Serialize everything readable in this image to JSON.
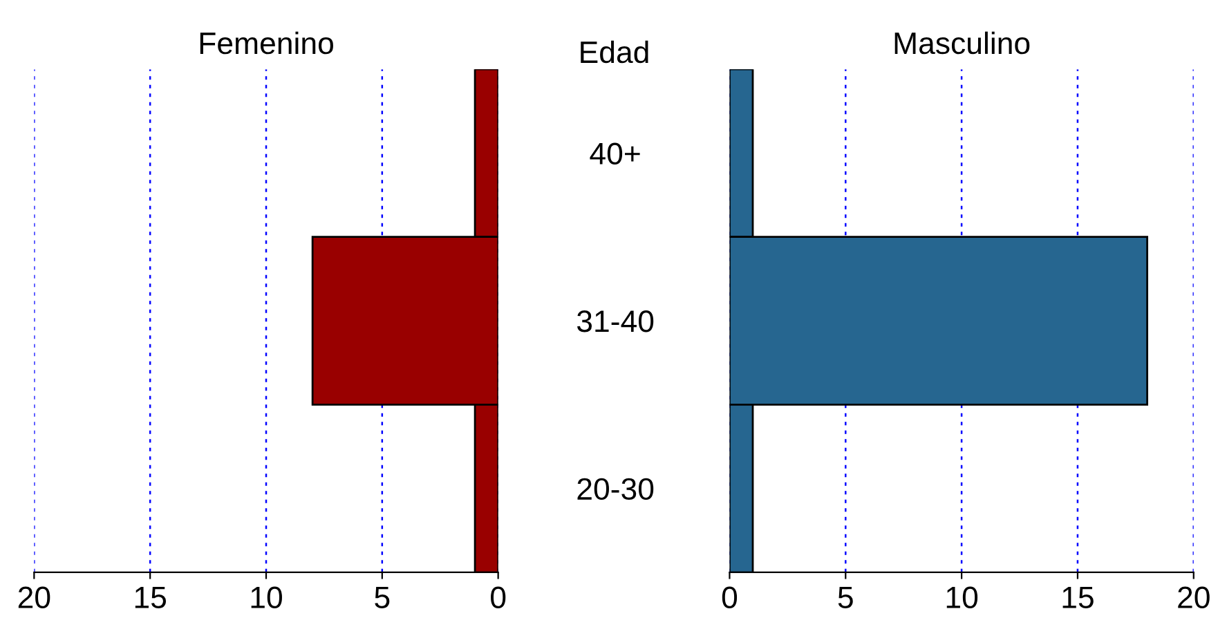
{
  "chart_data": [
    {
      "type": "bar",
      "orientation": "horizontal",
      "title": "Femenino",
      "annotations": [
        "Edad"
      ],
      "categories": [
        "40+",
        "31-40",
        "20-30"
      ],
      "series": [
        {
          "color": "#990000",
          "values": [
            1,
            8,
            1
          ]
        }
      ],
      "xlim": [
        20,
        0
      ],
      "xticks": [
        20,
        15,
        10,
        5,
        0
      ],
      "grid": "x"
    },
    {
      "type": "bar",
      "orientation": "horizontal",
      "title": "Masculino",
      "categories": [
        null,
        null,
        null
      ],
      "series": [
        {
          "color": "#266690",
          "values": [
            1,
            18,
            1
          ]
        }
      ],
      "xlim": [
        0,
        20
      ],
      "xticks": [
        0,
        5,
        10,
        15,
        20
      ],
      "grid": "x",
      "tick_labels": "x"
    }
  ]
}
